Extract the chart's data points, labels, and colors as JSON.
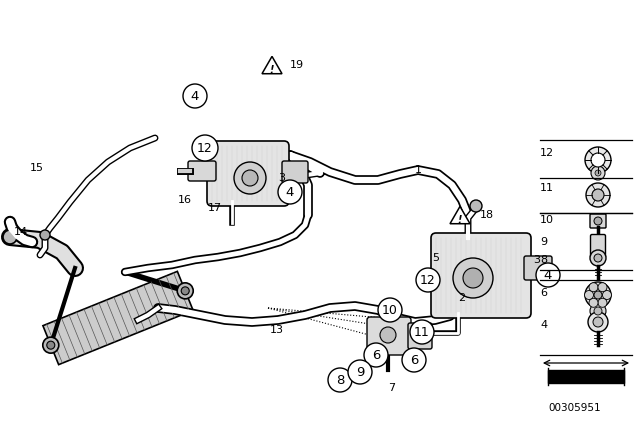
{
  "bg_color": "#ffffff",
  "diagram_number": "00305951",
  "lc": "#000000",
  "hose_fill": "#ffffff",
  "pump_fill": "#e8e8e8",
  "hx_fill": "#d0d0d0"
}
